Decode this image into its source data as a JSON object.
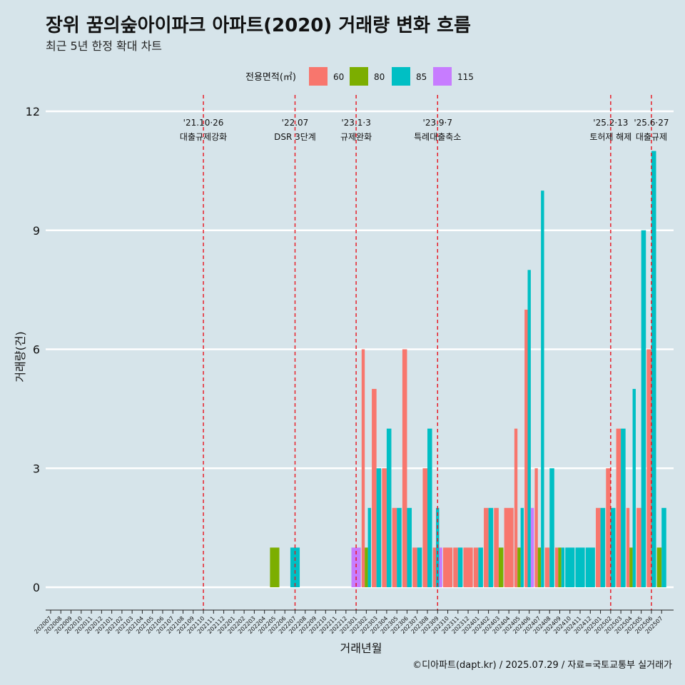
{
  "title": "장위 꿈의숲아이파크 아파트(2020) 거래량 변화 흐름",
  "subtitle": "최근 5년 한정 확대 차트",
  "caption": "©디아파트(dapt.kr) / 2025.07.29 / 자료=국토교통부 실거래가",
  "chart_data": {
    "type": "bar",
    "title": "장위 꿈의숲아이파크 아파트(2020) 거래량 변화 흐름",
    "subtitle": "최근 5년 한정 확대 차트",
    "xlabel": "거래년월",
    "ylabel": "거래량(건)",
    "ylim": [
      0,
      12
    ],
    "yticks": [
      0,
      3,
      6,
      9,
      12
    ],
    "legend": {
      "title": "전용면적(㎡)",
      "position": "top"
    },
    "categories": [
      "202007",
      "202008",
      "202009",
      "202010",
      "202011",
      "202012",
      "202101",
      "202102",
      "202103",
      "202104",
      "202105",
      "202106",
      "202107",
      "202108",
      "202109",
      "202110",
      "202111",
      "202112",
      "202201",
      "202202",
      "202203",
      "202204",
      "202205",
      "202206",
      "202207",
      "202208",
      "202209",
      "202210",
      "202211",
      "202212",
      "202301",
      "202302",
      "202303",
      "202304",
      "202305",
      "202306",
      "202307",
      "202308",
      "202309",
      "202310",
      "202311",
      "202312",
      "202401",
      "202402",
      "202403",
      "202404",
      "202405",
      "202406",
      "202407",
      "202408",
      "202409",
      "202410",
      "202411",
      "202412",
      "202501",
      "202502",
      "202503",
      "202504",
      "202505",
      "202506",
      "202507"
    ],
    "series": [
      {
        "name": "60",
        "color": "#f8766d",
        "values": [
          0,
          0,
          0,
          0,
          0,
          0,
          0,
          0,
          0,
          0,
          0,
          0,
          0,
          0,
          0,
          0,
          0,
          0,
          0,
          0,
          0,
          0,
          0,
          0,
          0,
          0,
          0,
          0,
          0,
          0,
          0,
          6,
          5,
          3,
          2,
          6,
          1,
          3,
          1,
          1,
          1,
          1,
          1,
          2,
          2,
          2,
          4,
          7,
          3,
          1,
          1,
          0,
          0,
          0,
          2,
          3,
          4,
          2,
          2,
          6,
          0
        ]
      },
      {
        "name": "80",
        "color": "#7cae00",
        "values": [
          0,
          0,
          0,
          0,
          0,
          0,
          0,
          0,
          0,
          0,
          0,
          0,
          0,
          0,
          0,
          0,
          0,
          0,
          0,
          0,
          0,
          0,
          1,
          0,
          0,
          0,
          0,
          0,
          0,
          0,
          0,
          1,
          0,
          0,
          0,
          0,
          0,
          0,
          0,
          0,
          0,
          0,
          0,
          0,
          1,
          0,
          1,
          0,
          1,
          0,
          1,
          0,
          0,
          0,
          0,
          0,
          0,
          1,
          0,
          0,
          1
        ]
      },
      {
        "name": "85",
        "color": "#00bfc4",
        "values": [
          0,
          0,
          0,
          0,
          0,
          0,
          0,
          0,
          0,
          0,
          0,
          0,
          0,
          0,
          0,
          0,
          0,
          0,
          0,
          0,
          0,
          0,
          0,
          0,
          1,
          0,
          0,
          0,
          0,
          0,
          0,
          2,
          3,
          4,
          2,
          2,
          1,
          4,
          2,
          0,
          1,
          0,
          1,
          2,
          0,
          0,
          2,
          8,
          10,
          3,
          1,
          1,
          1,
          1,
          2,
          2,
          4,
          5,
          9,
          11,
          2
        ]
      },
      {
        "name": "115",
        "color": "#c77cff",
        "values": [
          0,
          0,
          0,
          0,
          0,
          0,
          0,
          0,
          0,
          0,
          0,
          0,
          0,
          0,
          0,
          0,
          0,
          0,
          0,
          0,
          0,
          0,
          0,
          0,
          0,
          0,
          0,
          0,
          0,
          0,
          1,
          0,
          0,
          0,
          0,
          0,
          0,
          0,
          1,
          0,
          0,
          0,
          0,
          0,
          0,
          0,
          0,
          2,
          0,
          0,
          0,
          0,
          0,
          0,
          0,
          0,
          0,
          0,
          0,
          0,
          0
        ]
      }
    ],
    "events": [
      {
        "date": "'21.10·26",
        "label": "대출규제강화",
        "at": "202110"
      },
      {
        "date": "'22.07",
        "label": "DSR 3단계",
        "at": "202207"
      },
      {
        "date": "'23.1·3",
        "label": "규제완화",
        "at": "202301"
      },
      {
        "date": "'23.9·7",
        "label": "특례대출축소",
        "at": "202309"
      },
      {
        "date": "'25.2·13",
        "label": "토허제 해제",
        "at": "202502"
      },
      {
        "date": "'25.6·27",
        "label": "대출규제",
        "at": "202506"
      }
    ]
  }
}
